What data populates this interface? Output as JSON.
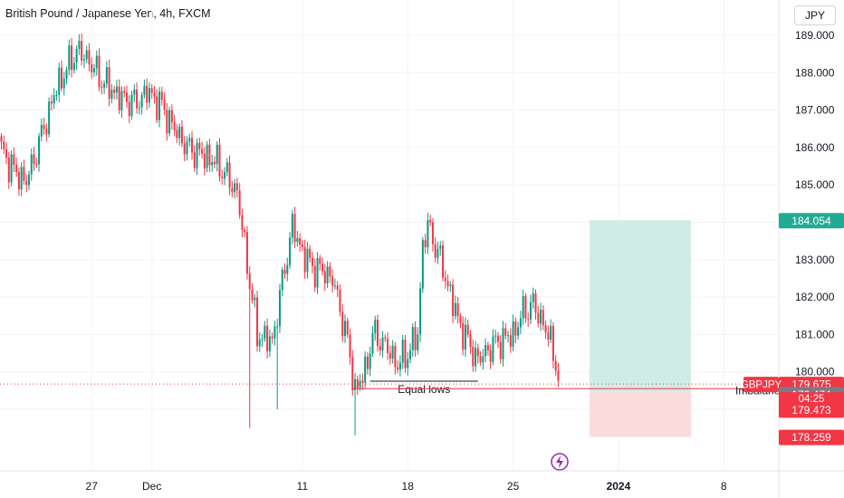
{
  "header": {
    "title": "British Pound / Japanese Yen, 4h, FXCM",
    "currency": "JPY"
  },
  "colors": {
    "up": "#089981",
    "down": "#f23645",
    "grid": "#f0f3fa",
    "axis_text": "#131722",
    "target_zone": "#cfece7",
    "stop_zone": "#fbdcdc",
    "label_green": "#22ab94",
    "label_red": "#f23645",
    "label_grey": "#787b86"
  },
  "chart_data": {
    "type": "candlestick",
    "symbol": "GBPJPY",
    "timeframe": "4h",
    "y_ticks": [
      189.0,
      188.0,
      187.0,
      186.0,
      185.0,
      184.0,
      183.0,
      182.0,
      181.0,
      180.0,
      179.0
    ],
    "y_tick_labels": [
      "189.000",
      "188.000",
      "187.000",
      "186.000",
      "185.000",
      "",
      "183.000",
      "182.000",
      "181.000",
      "180.000",
      "179.000"
    ],
    "ylim": [
      178.0,
      189.6
    ],
    "x_tick_labels": [
      "27",
      "Dec",
      "11",
      "18",
      "25",
      "2024",
      "8"
    ],
    "bold_x_tick": "2024",
    "bars_per_day": 6,
    "session_start": "Nov 21",
    "anchors": [
      [
        0,
        185.9
      ],
      [
        6,
        185.3
      ],
      [
        10,
        185.1
      ],
      [
        14,
        185.9
      ],
      [
        22,
        187.6
      ],
      [
        30,
        188.6
      ],
      [
        34,
        188.4
      ],
      [
        40,
        187.8
      ],
      [
        48,
        187.3
      ],
      [
        54,
        187.2
      ],
      [
        58,
        187.5
      ],
      [
        64,
        187.1
      ],
      [
        68,
        186.6
      ],
      [
        74,
        186.0
      ],
      [
        80,
        185.8
      ],
      [
        86,
        185.6
      ],
      [
        94,
        184.8
      ],
      [
        99,
        182.4
      ],
      [
        102,
        181.0
      ],
      [
        108,
        180.8
      ],
      [
        110,
        181.6
      ],
      [
        112,
        182.4
      ],
      [
        116,
        183.9
      ],
      [
        120,
        183.2
      ],
      [
        124,
        182.8
      ],
      [
        128,
        182.7
      ],
      [
        132,
        182.5
      ],
      [
        136,
        181.4
      ],
      [
        138,
        180.8
      ],
      [
        141,
        179.5
      ],
      [
        145,
        180.0
      ],
      [
        148,
        181.0
      ],
      [
        152,
        180.8
      ],
      [
        158,
        180.2
      ],
      [
        162,
        180.5
      ],
      [
        166,
        181.0
      ],
      [
        168,
        183.4
      ],
      [
        170,
        183.9
      ],
      [
        174,
        183.2
      ],
      [
        178,
        182.3
      ],
      [
        182,
        181.4
      ],
      [
        186,
        180.8
      ],
      [
        190,
        180.3
      ],
      [
        194,
        180.6
      ],
      [
        198,
        180.8
      ],
      [
        204,
        181.0
      ],
      [
        208,
        181.6
      ],
      [
        212,
        181.8
      ],
      [
        216,
        181.3
      ],
      [
        220,
        180.6
      ],
      [
        222,
        179.8
      ]
    ],
    "wicks": [
      [
        99,
        178.5
      ],
      [
        110,
        179.0
      ],
      [
        141,
        178.3
      ],
      [
        116,
        184.3
      ],
      [
        170,
        184.1
      ]
    ],
    "last_price": 179.675,
    "symbol_tag": "GBPJPY",
    "price_tag": "179.675",
    "countdown": "04:25",
    "equal_lows": {
      "label": "Equal lows",
      "price": 179.75,
      "start_bar": 147,
      "end_bar": 190
    },
    "imbalance": {
      "label": "Imbalance",
      "price": 179.55,
      "start_bar": 140
    },
    "position": {
      "target": 184.054,
      "entry": 179.474,
      "stop": 178.259
    },
    "axis_tags": [
      {
        "value": "184.054",
        "price": 184.054,
        "color": "#22ab94"
      },
      {
        "value": "179.675",
        "price": 179.675,
        "color": "#f23645"
      },
      {
        "value": "179.474",
        "price": 179.474,
        "color": "#787b86"
      },
      {
        "value": "179.473",
        "price": 179.473,
        "color": "#f23645"
      },
      {
        "value": "178.259",
        "price": 178.259,
        "color": "#f23645"
      }
    ],
    "grid": true
  }
}
